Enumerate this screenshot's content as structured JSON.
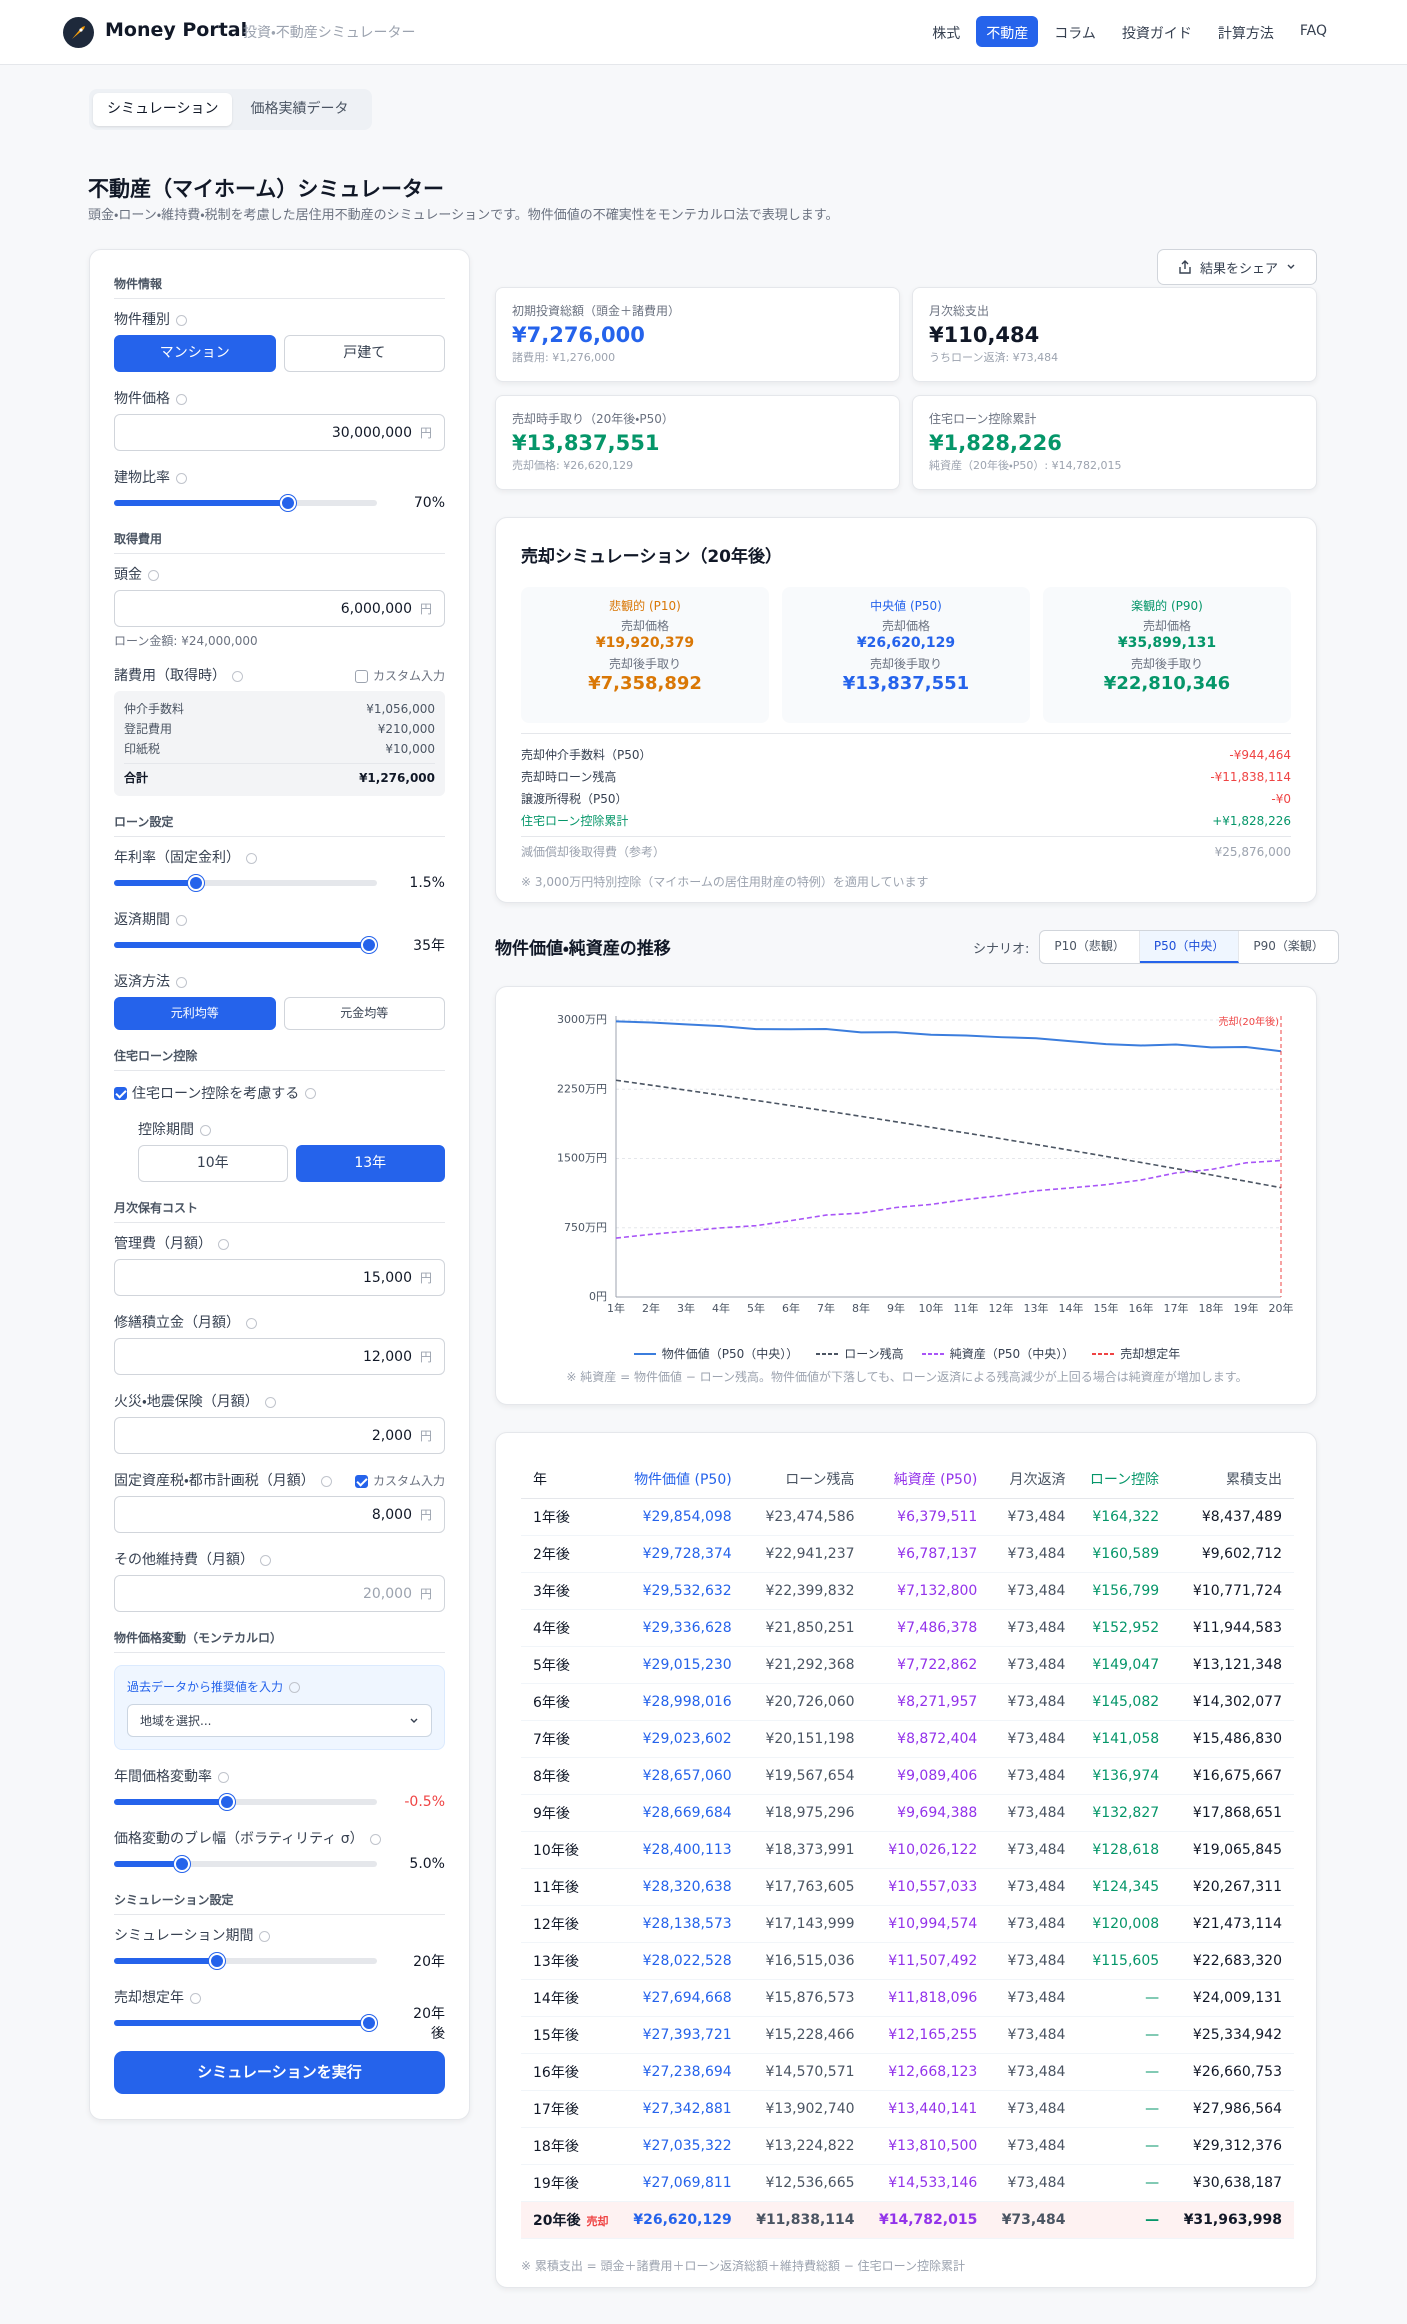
{
  "header": {
    "logo": "Money Portal",
    "tagline": "投資・不動産シミュレーター",
    "nav": [
      "株式",
      "不動産",
      "コラム",
      "投資ガイド",
      "計算方法",
      "FAQ"
    ],
    "active_nav": 1
  },
  "tabs": {
    "items": [
      "シミュレーション",
      "価格実績データ"
    ],
    "active": 0
  },
  "page": {
    "title": "不動産（マイホーム）シミュレーター",
    "description": "頭金・ローン・維持費・税制を考慮した居住用不動産のシミュレーションです。物件価値の不確実性をモンテカルロ法で表現します。"
  },
  "form": {
    "sections": [
      {
        "heading": "物件情報",
        "fields": [
          {
            "type": "toggle",
            "label": "物件種別",
            "info": true,
            "options": [
              "マンション",
              "戸建て"
            ],
            "active": 0
          },
          {
            "type": "input",
            "label": "物件価格",
            "info": true,
            "value": "30,000,000",
            "unit": "円"
          },
          {
            "type": "slider",
            "label": "建物比率",
            "info": true,
            "value": "70%"
          }
        ]
      },
      {
        "heading": "取得費用",
        "fields": [
          {
            "type": "input",
            "label": "頭金",
            "info": true,
            "value": "6,000,000",
            "unit": "円",
            "note": "ローン金額: ¥24,000,000"
          },
          {
            "type": "costs",
            "label": "諸費用（取得時）",
            "info": true,
            "option": "カスタム入力",
            "checked": false,
            "rows": [
              [
                "仲介手数料",
                "¥1,056,000"
              ],
              [
                "登記費用",
                "¥210,000"
              ],
              [
                "印紙税",
                "¥10,000"
              ]
            ],
            "total": [
              "合計",
              "¥1,276,000"
            ]
          }
        ]
      },
      {
        "heading": "ローン設定",
        "fields": [
          {
            "type": "slider",
            "label": "年利率（固定金利）",
            "info": true,
            "value": "1.5%"
          },
          {
            "type": "slider",
            "label": "返済期間",
            "info": true,
            "value": "35年"
          },
          {
            "type": "toggle",
            "label": "返済方法",
            "info": true,
            "options": [
              "元利均等",
              "元金均等"
            ],
            "active": 0,
            "small": true
          }
        ]
      },
      {
        "heading": "住宅ローン控除",
        "fields": [
          {
            "type": "checkbox",
            "label": "住宅ローン控除を考慮する",
            "info": true,
            "checked": true
          },
          {
            "type": "toggle",
            "label": "控除期間",
            "info": true,
            "options": [
              "10年",
              "13年"
            ],
            "active": 1,
            "indent": true
          }
        ]
      },
      {
        "heading": "月次保有コスト",
        "fields": [
          {
            "type": "input",
            "label": "管理費（月額）",
            "info": true,
            "value": "15,000",
            "unit": "円"
          },
          {
            "type": "input",
            "label": "修繕積立金（月額）",
            "info": true,
            "value": "12,000",
            "unit": "円"
          },
          {
            "type": "input",
            "label": "火災・地震保険（月額）",
            "info": true,
            "value": "2,000",
            "unit": "円"
          },
          {
            "type": "input",
            "label": "固定資産税・都市計画税（月額）",
            "info": true,
            "option": "カスタム入力",
            "checked": true,
            "value": "8,000",
            "unit": "円"
          },
          {
            "type": "input",
            "label": "その他維持費（月額）",
            "info": true,
            "value": "20,000",
            "unit": "円",
            "placeholder": true
          }
        ]
      },
      {
        "heading": "物件価格変動（モンテカルロ）",
        "fields": [
          {
            "type": "picker",
            "label": "過去データから推奨値を入力",
            "info": true,
            "select": "地域を選択..."
          },
          {
            "type": "slider",
            "label": "年間価格変動率",
            "info": true,
            "value": "-0.5%",
            "tone": "negative"
          },
          {
            "type": "slider",
            "label": "価格変動のブレ幅（ボラティリティ σ）",
            "info": true,
            "value": "5.0%"
          }
        ]
      },
      {
        "heading": "シミュレーション設定",
        "fields": [
          {
            "type": "slider",
            "label": "シミュレーション期間",
            "info": true,
            "value": "20年"
          },
          {
            "type": "slider",
            "label": "売却想定年",
            "info": true,
            "value": "20年後"
          }
        ]
      }
    ],
    "submit": "シミュレーションを実行"
  },
  "share": "結果をシェア",
  "summary_cards": [
    {
      "label": "初期投資総額（頭金＋諸費用）",
      "value": "¥7,276,000",
      "sub": "諸費用: ¥1,276,000",
      "tone": "blue"
    },
    {
      "label": "月次総支出",
      "value": "¥110,484",
      "sub": "うちローン返済: ¥73,484",
      "tone": "dark"
    },
    {
      "label": "売却時手取り（20年後・P50）",
      "value": "¥13,837,551",
      "sub": "売却価格: ¥26,620,129",
      "tone": "green"
    },
    {
      "label": "住宅ローン控除累計",
      "value": "¥1,828,226",
      "sub": "純資産（20年後・P50）: ¥14,782,015",
      "tone": "green"
    }
  ],
  "sale": {
    "title": "売却シミュレーション（20年後）",
    "scenarios": [
      {
        "name": "悲観的 (P10)",
        "tone": "orange",
        "price_label": "売却価格",
        "price": "¥19,920,379",
        "net_label": "売却後手取り",
        "net": "¥7,358,892"
      },
      {
        "name": "中央値 (P50)",
        "tone": "blue",
        "price_label": "売却価格",
        "price": "¥26,620,129",
        "net_label": "売却後手取り",
        "net": "¥13,837,551"
      },
      {
        "name": "楽観的 (P90)",
        "tone": "green",
        "price_label": "売却価格",
        "price": "¥35,899,131",
        "net_label": "売却後手取り",
        "net": "¥22,810,346"
      }
    ],
    "breakdown": [
      {
        "label": "売却仲介手数料（P50）",
        "value": "-¥944,464",
        "tone": "red"
      },
      {
        "label": "売却時ローン残高",
        "value": "-¥11,838,114",
        "tone": "red"
      },
      {
        "label": "譲渡所得税（P50）",
        "value": "-¥0",
        "tone": "red"
      },
      {
        "label": "住宅ローン控除累計",
        "value": "+¥1,828,226",
        "tone": "green"
      },
      {
        "label": "減価償却後取得費（参考）",
        "value": "¥25,876,000",
        "tone": "grey"
      }
    ],
    "note": "※ 3,000万円特別控除（マイホームの居住用財産の特例）を適用しています"
  },
  "trend": {
    "scenario_label": "シナリオ:",
    "scenario_options": [
      "P10（悲観）",
      "P50（中央）",
      "P90（楽観）"
    ],
    "active_scenario": 1,
    "note": "※ 純資産 = 物件価値 − ローン残高。物件価値が下落しても、ローン返済による残高減少が上回る場合は純資産が増加します。",
    "chart_data": {
      "type": "line",
      "title": "物件価値・純資産の推移",
      "categories": [
        "1年",
        "2年",
        "3年",
        "4年",
        "5年",
        "6年",
        "7年",
        "8年",
        "9年",
        "10年",
        "11年",
        "12年",
        "13年",
        "14年",
        "15年",
        "16年",
        "17年",
        "18年",
        "19年",
        "20年"
      ],
      "series": [
        {
          "name": "物件価値（P50（中央））",
          "color": "#3b7ddd",
          "style": "solid",
          "values": [
            29854098,
            29728374,
            29532632,
            29336628,
            29015230,
            28998016,
            29023602,
            28657060,
            28669684,
            28400113,
            28320638,
            28138573,
            28022528,
            27694668,
            27393721,
            27238694,
            27342881,
            27035322,
            27069811,
            26620129
          ]
        },
        {
          "name": "ローン残高",
          "color": "#4b5563",
          "style": "dashed",
          "values": [
            23474586,
            22941237,
            22399832,
            21850251,
            21292368,
            20726060,
            20151198,
            19567654,
            18975296,
            18373991,
            17763605,
            17143999,
            16515036,
            15876573,
            15228466,
            14570571,
            13902740,
            13224822,
            12536665,
            11838114
          ]
        },
        {
          "name": "純資産（P50（中央））",
          "color": "#a855f7",
          "style": "dashed",
          "values": [
            6379511,
            6787137,
            7132800,
            7486378,
            7722862,
            8271957,
            8872404,
            9089406,
            9694388,
            10026122,
            10557033,
            10994574,
            11507492,
            11818096,
            12165255,
            12668123,
            13440141,
            13810500,
            14533146,
            14782015
          ]
        }
      ],
      "vline": {
        "name": "売却想定年",
        "at": "20年",
        "label": "売却(20年後)",
        "color": "#ef4444"
      },
      "ylim": [
        0,
        30000000
      ],
      "yticks": [
        {
          "value": 0,
          "label": "0円"
        },
        {
          "value": 7500000,
          "label": "750万円"
        },
        {
          "value": 15000000,
          "label": "1500万円"
        },
        {
          "value": 22500000,
          "label": "2250万円"
        },
        {
          "value": 30000000,
          "label": "3000万円"
        }
      ],
      "grid": true
    }
  },
  "table": {
    "headers": [
      "年",
      "物件価値 (P50)",
      "ローン残高",
      "純資産 (P50)",
      "月次返済",
      "ローン控除",
      "累積支出"
    ],
    "rows": [
      [
        "1年後",
        "¥29,854,098",
        "¥23,474,586",
        "¥6,379,511",
        "¥73,484",
        "¥164,322",
        "¥8,437,489"
      ],
      [
        "2年後",
        "¥29,728,374",
        "¥22,941,237",
        "¥6,787,137",
        "¥73,484",
        "¥160,589",
        "¥9,602,712"
      ],
      [
        "3年後",
        "¥29,532,632",
        "¥22,399,832",
        "¥7,132,800",
        "¥73,484",
        "¥156,799",
        "¥10,771,724"
      ],
      [
        "4年後",
        "¥29,336,628",
        "¥21,850,251",
        "¥7,486,378",
        "¥73,484",
        "¥152,952",
        "¥11,944,583"
      ],
      [
        "5年後",
        "¥29,015,230",
        "¥21,292,368",
        "¥7,722,862",
        "¥73,484",
        "¥149,047",
        "¥13,121,348"
      ],
      [
        "6年後",
        "¥28,998,016",
        "¥20,726,060",
        "¥8,271,957",
        "¥73,484",
        "¥145,082",
        "¥14,302,077"
      ],
      [
        "7年後",
        "¥29,023,602",
        "¥20,151,198",
        "¥8,872,404",
        "¥73,484",
        "¥141,058",
        "¥15,486,830"
      ],
      [
        "8年後",
        "¥28,657,060",
        "¥19,567,654",
        "¥9,089,406",
        "¥73,484",
        "¥136,974",
        "¥16,675,667"
      ],
      [
        "9年後",
        "¥28,669,684",
        "¥18,975,296",
        "¥9,694,388",
        "¥73,484",
        "¥132,827",
        "¥17,868,651"
      ],
      [
        "10年後",
        "¥28,400,113",
        "¥18,373,991",
        "¥10,026,122",
        "¥73,484",
        "¥128,618",
        "¥19,065,845"
      ],
      [
        "11年後",
        "¥28,320,638",
        "¥17,763,605",
        "¥10,557,033",
        "¥73,484",
        "¥124,345",
        "¥20,267,311"
      ],
      [
        "12年後",
        "¥28,138,573",
        "¥17,143,999",
        "¥10,994,574",
        "¥73,484",
        "¥120,008",
        "¥21,473,114"
      ],
      [
        "13年後",
        "¥28,022,528",
        "¥16,515,036",
        "¥11,507,492",
        "¥73,484",
        "¥115,605",
        "¥22,683,320"
      ],
      [
        "14年後",
        "¥27,694,668",
        "¥15,876,573",
        "¥11,818,096",
        "¥73,484",
        "—",
        "¥24,009,131"
      ],
      [
        "15年後",
        "¥27,393,721",
        "¥15,228,466",
        "¥12,165,255",
        "¥73,484",
        "—",
        "¥25,334,942"
      ],
      [
        "16年後",
        "¥27,238,694",
        "¥14,570,571",
        "¥12,668,123",
        "¥73,484",
        "—",
        "¥26,660,753"
      ],
      [
        "17年後",
        "¥27,342,881",
        "¥13,902,740",
        "¥13,440,141",
        "¥73,484",
        "—",
        "¥27,986,564"
      ],
      [
        "18年後",
        "¥27,035,322",
        "¥13,224,822",
        "¥13,810,500",
        "¥73,484",
        "—",
        "¥29,312,376"
      ],
      [
        "19年後",
        "¥27,069,811",
        "¥12,536,665",
        "¥14,533,146",
        "¥73,484",
        "—",
        "¥30,638,187"
      ],
      [
        "20年後",
        "¥26,620,129",
        "¥11,838,114",
        "¥14,782,015",
        "¥73,484",
        "—",
        "¥31,963,998"
      ]
    ],
    "sale_row": 19,
    "sale_badge": "売却",
    "note": "※ 累積支出 = 頭金＋諸費用＋ローン返済総額＋維持費総額 − 住宅ローン控除累計"
  }
}
